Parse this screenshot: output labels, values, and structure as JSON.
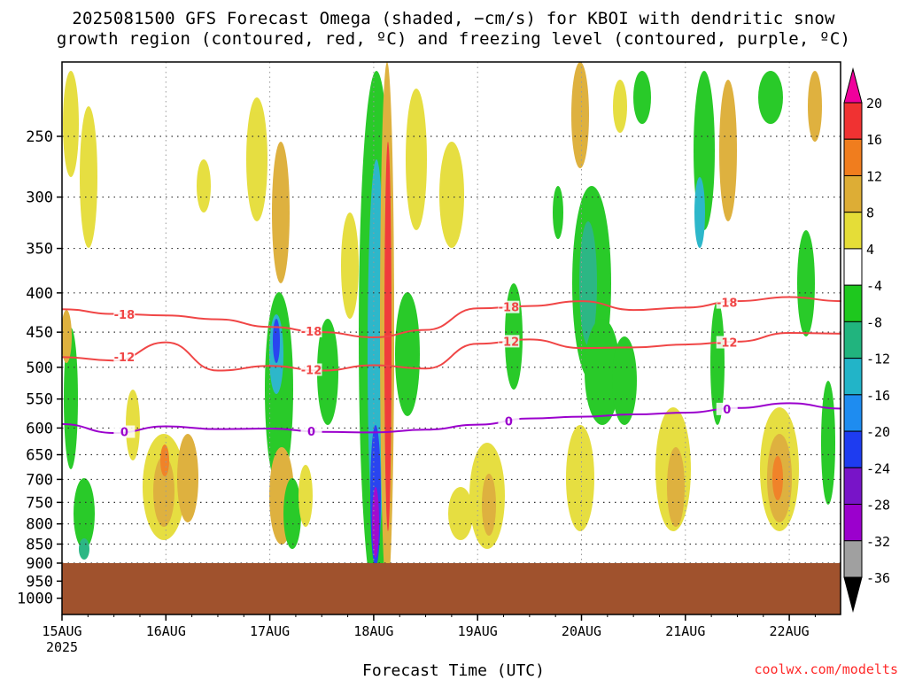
{
  "title_line1": "2025081500 GFS Forecast Omega (shaded, −cm/s) for KBOI with dendritic snow",
  "title_line2": "growth region (contoured, red, ºC) and freezing level (contoured, purple, ºC)",
  "credit": "coolwx.com/modelts",
  "chart_data": {
    "type": "heatmap",
    "xlabel": "Forecast Time (UTC)",
    "x_ticks": [
      "15AUG",
      "16AUG",
      "17AUG",
      "18AUG",
      "19AUG",
      "20AUG",
      "21AUG",
      "22AUG"
    ],
    "x_year_label": "2025",
    "x_range_days": [
      0,
      7.5
    ],
    "y_ticks": [
      250,
      300,
      350,
      400,
      450,
      500,
      550,
      600,
      650,
      700,
      750,
      800,
      850,
      900,
      950,
      1000
    ],
    "y_range_hpa": [
      200,
      1050
    ],
    "y_scale": "log",
    "ground_level_hpa": 900,
    "colorbar": {
      "labels": [
        "20",
        "16",
        "12",
        "8",
        "4",
        "-4",
        "-8",
        "-12",
        "-16",
        "-20",
        "-24",
        "-28",
        "-32",
        "-36"
      ],
      "colors": [
        "#f0009c",
        "#f03232",
        "#f07d1e",
        "#ddad35",
        "#e5dd37",
        "#ffffff",
        "#1ec81e",
        "#21b47e",
        "#22b4c8",
        "#1e8cf0",
        "#1e3cf0",
        "#7814c8",
        "#9b00cd",
        "#a0a0a0",
        "#000000"
      ]
    },
    "contours": [
      {
        "label": "-18",
        "color": "#f04646",
        "points": [
          [
            0,
            420
          ],
          [
            0.5,
            426
          ],
          [
            1.0,
            428
          ],
          [
            1.5,
            433
          ],
          [
            2.0,
            443
          ],
          [
            2.5,
            450
          ],
          [
            3.0,
            457
          ],
          [
            3.5,
            447
          ],
          [
            4.0,
            419
          ],
          [
            4.5,
            416
          ],
          [
            5.0,
            410
          ],
          [
            5.5,
            421
          ],
          [
            6.0,
            418
          ],
          [
            6.5,
            410
          ],
          [
            7.0,
            405
          ],
          [
            7.5,
            410
          ]
        ]
      },
      {
        "label": "-12",
        "color": "#f04646",
        "points": [
          [
            0,
            485
          ],
          [
            0.5,
            490
          ],
          [
            1.0,
            464
          ],
          [
            1.5,
            505
          ],
          [
            2.0,
            498
          ],
          [
            2.5,
            505
          ],
          [
            3.0,
            497
          ],
          [
            3.5,
            502
          ],
          [
            4.0,
            466
          ],
          [
            4.5,
            460
          ],
          [
            5.0,
            472
          ],
          [
            5.5,
            471
          ],
          [
            6.0,
            467
          ],
          [
            6.5,
            463
          ],
          [
            7.0,
            451
          ],
          [
            7.5,
            452
          ]
        ]
      },
      {
        "label": "0",
        "color": "#9b00cd",
        "points": [
          [
            0,
            593
          ],
          [
            0.5,
            609
          ],
          [
            1.0,
            597
          ],
          [
            1.5,
            602
          ],
          [
            2.0,
            601
          ],
          [
            2.5,
            607
          ],
          [
            3.0,
            608
          ],
          [
            3.5,
            603
          ],
          [
            4.0,
            594
          ],
          [
            4.5,
            583
          ],
          [
            5.0,
            580
          ],
          [
            5.5,
            576
          ],
          [
            6.0,
            573
          ],
          [
            6.5,
            565
          ],
          [
            7.0,
            557
          ],
          [
            7.5,
            566
          ]
        ]
      }
    ]
  }
}
